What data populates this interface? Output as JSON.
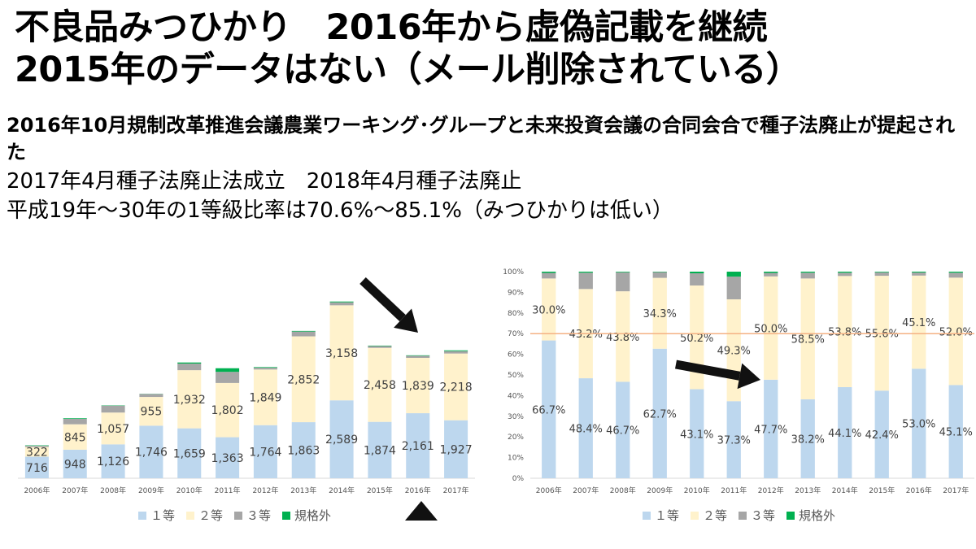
{
  "title": {
    "line1": "不良品みつひかり　2016年から虚偽記載を継続",
    "line2": "2015年のデータはない（メール削除されている）"
  },
  "subtitle": {
    "bold": "2016年10月規制改革推進会議農業ワーキング･グループと未来投資会議の合同会合で種子法廃止が提起された",
    "line2": "2017年4月種子法廃止法成立　2018年4月種子法廃止",
    "line3": "平成19年～30年の1等級比率は70.6%～85.1%（みつひかりは低い）"
  },
  "colors": {
    "grade1": "#bdd7ee",
    "grade2": "#fff2cc",
    "grade3": "#a6a6a6",
    "out": "#00b050",
    "ref_line": "#f4b183",
    "arrow": "#111111"
  },
  "chart_data": [
    {
      "type": "bar",
      "stacked": true,
      "categories": [
        "2006年",
        "2007年",
        "2008年",
        "2009年",
        "2010年",
        "2011年",
        "2012年",
        "2013年",
        "2014年",
        "2015年",
        "2016年",
        "2017年"
      ],
      "series": [
        {
          "name": "１等",
          "values": [
            716,
            948,
            1126,
            1746,
            1659,
            1363,
            1764,
            1863,
            2589,
            1874,
            2161,
            1927
          ],
          "labels": [
            "716",
            "948",
            "1,126",
            "1,746",
            "1,659",
            "1,363",
            "1,764",
            "1,863",
            "2,589",
            "1,874",
            "2,161",
            "1,927"
          ]
        },
        {
          "name": "２等",
          "values": [
            322,
            845,
            1057,
            955,
            1932,
            1802,
            1849,
            2852,
            3158,
            2458,
            1839,
            2218
          ],
          "labels": [
            "322",
            "845",
            "1,057",
            "955",
            "1,932",
            "1,802",
            "1,849",
            "2,852",
            "3,158",
            "2,458",
            "1,839",
            "2,218"
          ]
        },
        {
          "name": "３等",
          "values": [
            40,
            180,
            230,
            100,
            220,
            370,
            60,
            160,
            100,
            60,
            70,
            80
          ]
        },
        {
          "name": "規格外",
          "values": [
            15,
            20,
            10,
            5,
            35,
            120,
            20,
            20,
            25,
            15,
            15,
            25
          ]
        }
      ],
      "ylim": [
        0,
        7000
      ],
      "grid": false,
      "legend": "bottom"
    },
    {
      "type": "bar",
      "stacked": true,
      "percent": true,
      "categories": [
        "2006年",
        "2007年",
        "2008年",
        "2009年",
        "2010年",
        "2011年",
        "2012年",
        "2013年",
        "2014年",
        "2015年",
        "2016年",
        "2017年"
      ],
      "y_ticks": [
        "0%",
        "10%",
        "20%",
        "30%",
        "40%",
        "50%",
        "60%",
        "70%",
        "80%",
        "90%",
        "100%"
      ],
      "series": [
        {
          "name": "１等",
          "values": [
            66.7,
            48.4,
            46.7,
            62.7,
            43.1,
            37.3,
            47.7,
            38.2,
            44.1,
            42.4,
            53.0,
            45.1
          ],
          "labels": [
            "66.7%",
            "48.4%",
            "46.7%",
            "62.7%",
            "43.1%",
            "37.3%",
            "47.7%",
            "38.2%",
            "44.1%",
            "42.4%",
            "53.0%",
            "45.1%"
          ]
        },
        {
          "name": "２等",
          "values": [
            30.0,
            43.2,
            43.8,
            34.3,
            50.2,
            49.3,
            50.0,
            58.5,
            53.8,
            55.6,
            45.1,
            52.0
          ],
          "labels": [
            "30.0%",
            "43.2%",
            "43.8%",
            "34.3%",
            "50.2%",
            "49.3%",
            "50.0%",
            "58.5%",
            "53.8%",
            "55.6%",
            "45.1%",
            "52.0%"
          ]
        },
        {
          "name": "３等",
          "values": [
            2.7,
            7.9,
            9.2,
            2.8,
            5.9,
            11.0,
            1.7,
            2.8,
            1.6,
            1.7,
            1.5,
            2.4
          ]
        },
        {
          "name": "規格外",
          "values": [
            0.6,
            0.5,
            0.3,
            0.2,
            0.8,
            2.4,
            0.6,
            0.5,
            0.5,
            0.3,
            0.4,
            0.5
          ]
        }
      ],
      "reference_line": 70,
      "ylim": [
        0,
        100
      ],
      "grid": false,
      "legend": "bottom"
    }
  ]
}
